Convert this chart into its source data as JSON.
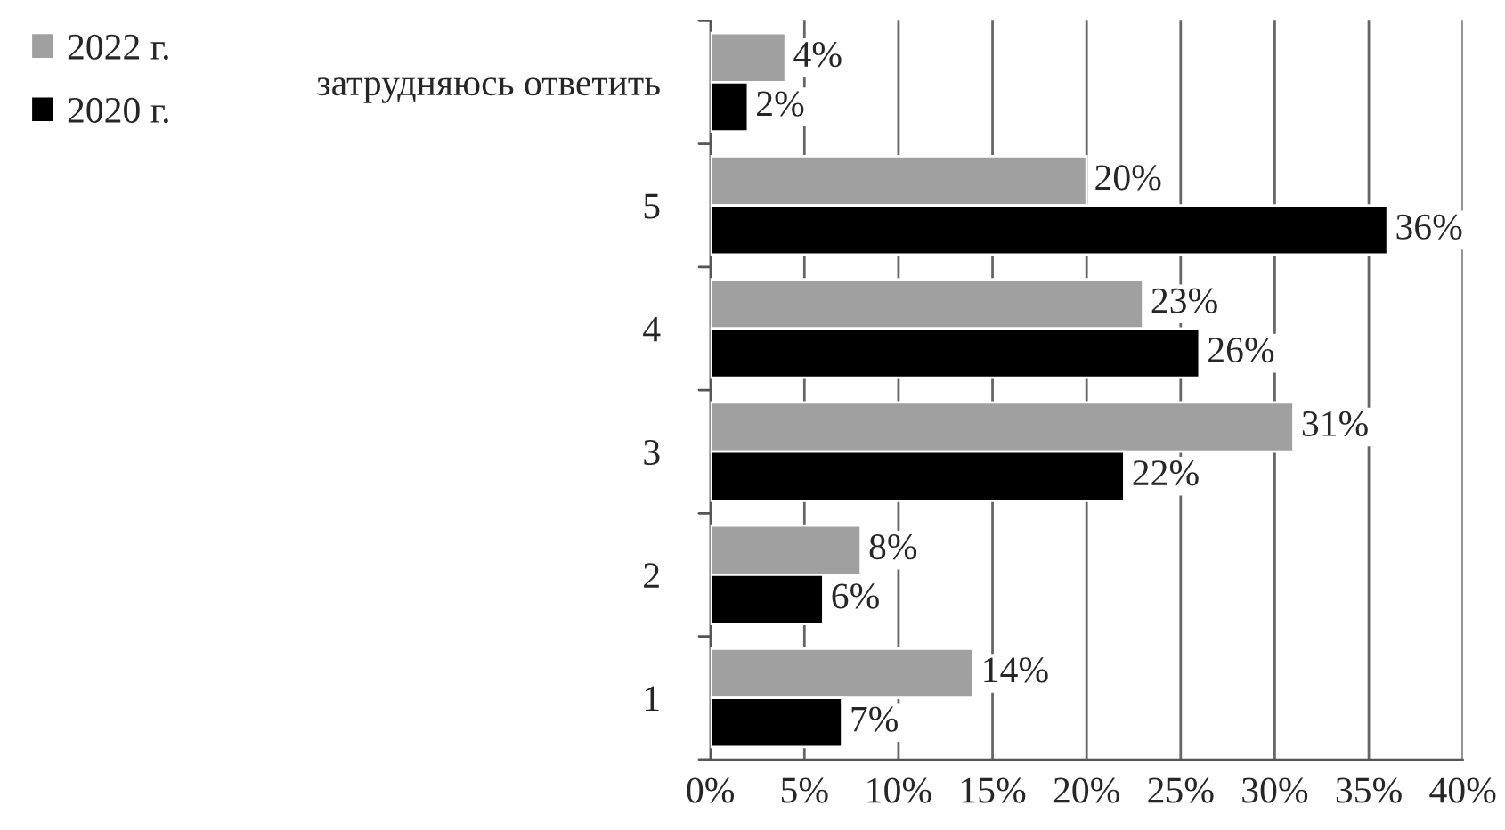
{
  "chart_data": {
    "type": "bar",
    "orientation": "horizontal",
    "categories": [
      "затрудняюсь ответить",
      "5",
      "4",
      "3",
      "2",
      "1"
    ],
    "series": [
      {
        "name": "2022 г.",
        "color": "#a0a0a0",
        "values": [
          4,
          20,
          23,
          31,
          8,
          14
        ],
        "value_labels": [
          "4%",
          "20%",
          "23%",
          "31%",
          "8%",
          "14%"
        ]
      },
      {
        "name": "2020 г.",
        "color": "#000000",
        "values": [
          2,
          36,
          26,
          22,
          6,
          7
        ],
        "value_labels": [
          "2%",
          "36%",
          "26%",
          "22%",
          "6%",
          "7%"
        ]
      }
    ],
    "xlim": [
      0,
      40
    ],
    "xticks": [
      {
        "value": 0,
        "label": "0%"
      },
      {
        "value": 5,
        "label": "5%"
      },
      {
        "value": 10,
        "label": "10%"
      },
      {
        "value": 15,
        "label": "15%"
      },
      {
        "value": 20,
        "label": "20%"
      },
      {
        "value": 25,
        "label": "25%"
      },
      {
        "value": 30,
        "label": "30%"
      },
      {
        "value": 35,
        "label": "35%"
      },
      {
        "value": 40,
        "label": "40%"
      }
    ],
    "grid": "x",
    "legend": "left"
  }
}
